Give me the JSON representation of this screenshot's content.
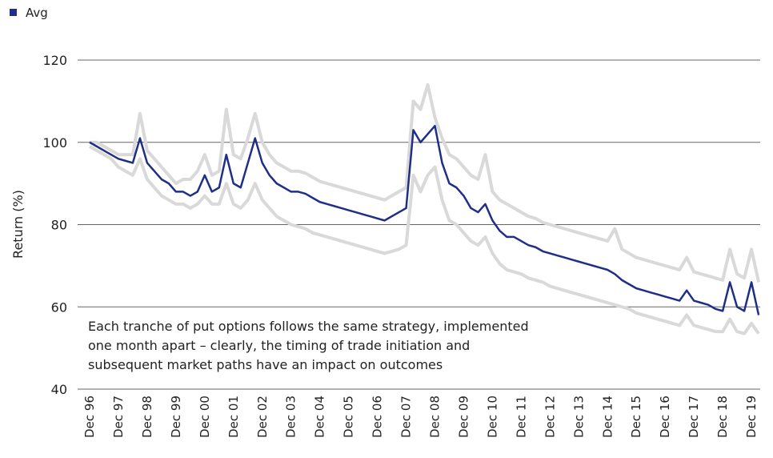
{
  "chart_data": {
    "type": "line",
    "y_label": "Return (%)",
    "annotation": [
      "Each tranche of put options follows the same strategy, implemented",
      "one month apart – clearly, the timing of trade initiation and",
      "subsequent market paths have an impact on outcomes"
    ],
    "legend": "top-left",
    "grid": true,
    "ylim": [
      40,
      120
    ],
    "yticks": [
      40,
      60,
      80,
      100,
      120
    ],
    "categories": [
      "Dec 96",
      null,
      null,
      null,
      "Dec 97",
      null,
      null,
      null,
      "Dec 98",
      null,
      null,
      null,
      "Dec 99",
      null,
      null,
      null,
      "Dec 00",
      null,
      null,
      null,
      "Dec 01",
      null,
      null,
      null,
      "Dec 02",
      null,
      null,
      null,
      "Dec 03",
      null,
      null,
      null,
      "Dec 04",
      null,
      null,
      null,
      "Dec 05",
      null,
      null,
      null,
      "Dec 06",
      null,
      null,
      null,
      "Dec 07",
      null,
      null,
      null,
      "Dec 08",
      null,
      null,
      null,
      "Dec 09",
      null,
      null,
      null,
      "Dec 10",
      null,
      null,
      null,
      "Dec 11",
      null,
      null,
      null,
      "Dec 12",
      null,
      null,
      null,
      "Dec 13",
      null,
      null,
      null,
      "Dec 14",
      null,
      null,
      null,
      "Dec 15",
      null,
      null,
      null,
      "Dec 16",
      null,
      null,
      null,
      "Dec 17",
      null,
      null,
      null,
      "Dec 18",
      null,
      null,
      null,
      "Dec 19",
      null
    ],
    "series": [
      {
        "color": "#d9d9d9",
        "values": [
          100,
          100,
          99,
          98,
          97,
          97,
          97,
          107,
          98,
          96,
          94,
          92,
          90,
          91,
          91,
          93,
          97,
          92,
          93,
          108,
          97,
          96,
          101,
          107,
          100,
          97,
          95,
          94,
          93,
          93,
          92.5,
          91.5,
          90.5,
          90,
          89.5,
          89,
          88.5,
          88,
          87.5,
          87,
          86.5,
          86,
          87,
          88,
          89,
          110,
          108,
          114,
          106,
          101,
          97,
          96,
          94,
          92,
          91,
          97,
          88,
          86,
          85,
          84,
          83,
          82,
          81.5,
          80.5,
          80,
          79.5,
          79,
          78.5,
          78,
          77.5,
          77,
          76.5,
          76,
          79,
          74,
          73,
          72,
          71.5,
          71,
          70.5,
          70,
          69.5,
          69,
          72,
          68.5,
          68,
          67.5,
          67,
          66.5,
          74,
          68,
          67,
          74,
          66
        ]
      },
      {
        "color": "#d9d9d9",
        "values": [
          99,
          98,
          97,
          96,
          94,
          93,
          92,
          96,
          91,
          89,
          87,
          86,
          85,
          85,
          84,
          85,
          87,
          85,
          85,
          90,
          85,
          84,
          86,
          90,
          86,
          84,
          82,
          81,
          80,
          79.5,
          79,
          78,
          77.5,
          77,
          76.5,
          76,
          75.5,
          75,
          74.5,
          74,
          73.5,
          73,
          73.5,
          74,
          75,
          92,
          88,
          92,
          94,
          86,
          81,
          80,
          78,
          76,
          75,
          77,
          73,
          70.5,
          69,
          68.5,
          68,
          67,
          66.5,
          66,
          65,
          64.5,
          64,
          63.5,
          63,
          62.5,
          62,
          61.5,
          61,
          60.5,
          60,
          59.5,
          58.5,
          58,
          57.5,
          57,
          56.5,
          56,
          55.5,
          58,
          55.5,
          55,
          54.5,
          54,
          54,
          57,
          54,
          53.5,
          56,
          53.5
        ]
      },
      {
        "name": "Avg",
        "color": "#1f2f87",
        "values": [
          100,
          99,
          98,
          97,
          96,
          95.5,
          95,
          101,
          95,
          93,
          91,
          90,
          88,
          88,
          87,
          88,
          92,
          88,
          89,
          97,
          90,
          89,
          95,
          101,
          95,
          92,
          90,
          89,
          88,
          88,
          87.5,
          86.5,
          85.5,
          85,
          84.5,
          84,
          83.5,
          83,
          82.5,
          82,
          81.5,
          81,
          82,
          83,
          84,
          103,
          100,
          102,
          104,
          95,
          90,
          89,
          87,
          84,
          83,
          85,
          81,
          78.5,
          77,
          77,
          76,
          75,
          74.5,
          73.5,
          73,
          72.5,
          72,
          71.5,
          71,
          70.5,
          70,
          69.5,
          69,
          68,
          66.5,
          65.5,
          64.5,
          64,
          63.5,
          63,
          62.5,
          62,
          61.5,
          64,
          61.5,
          61,
          60.5,
          59.5,
          59,
          66,
          60,
          59,
          66,
          58
        ]
      }
    ]
  }
}
